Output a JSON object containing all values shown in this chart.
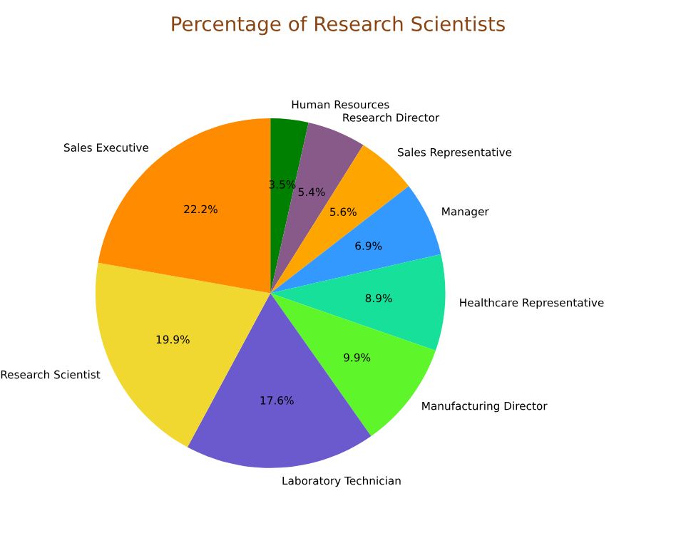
{
  "chart_data": {
    "type": "pie",
    "title": "Percentage of Research Scientists",
    "categories": [
      "Human Resources",
      "Research Director",
      "Sales Representative",
      "Manager",
      "Healthcare Representative",
      "Manufacturing Director",
      "Laboratory Technician",
      "Research Scientist",
      "Sales Executive"
    ],
    "values": [
      3.5,
      5.4,
      5.6,
      6.9,
      8.9,
      9.9,
      17.6,
      19.9,
      22.2
    ],
    "value_labels": [
      "3.5%",
      "5.4%",
      "5.6%",
      "6.9%",
      "8.9%",
      "9.9%",
      "17.6%",
      "19.9%",
      "22.2%"
    ],
    "colors": [
      "#008000",
      "#885a89",
      "#ffa500",
      "#3399ff",
      "#17e09a",
      "#5ef52a",
      "#6a5acd",
      "#f0d830",
      "#ff8c00"
    ]
  }
}
